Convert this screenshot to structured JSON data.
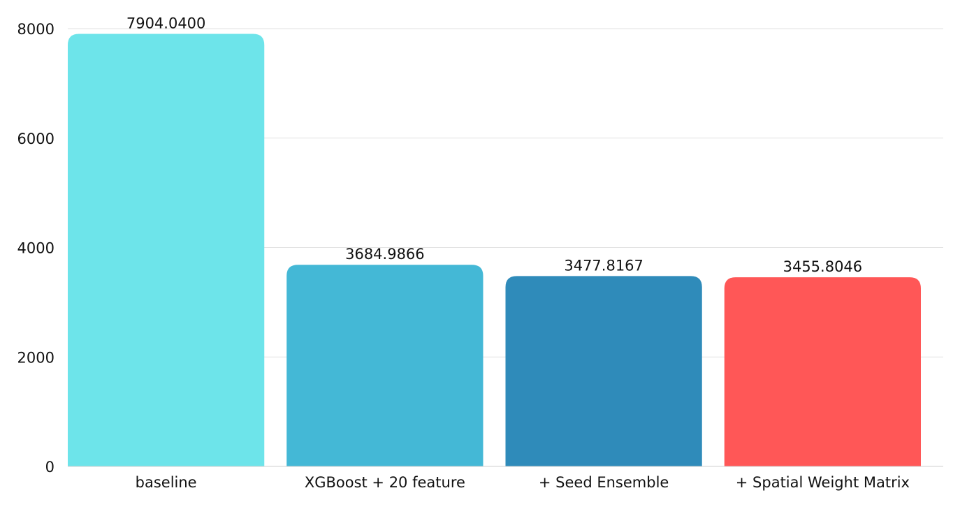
{
  "chart_data": {
    "type": "bar",
    "categories": [
      "baseline",
      "XGBoost + 20 feature",
      "+ Seed Ensemble",
      "+ Spatial Weight Matrix"
    ],
    "values": [
      7904.04,
      3684.9866,
      3477.8167,
      3455.8046
    ],
    "value_labels": [
      "7904.0400",
      "3684.9866",
      "3477.8167",
      "3455.8046"
    ],
    "colors": [
      "#6de4ea",
      "#44b8d6",
      "#2f8bba",
      "#ff5757"
    ],
    "y_ticks": [
      0,
      2000,
      4000,
      6000,
      8000
    ],
    "y_tick_labels": [
      "0",
      "2000",
      "4000",
      "6000",
      "8000"
    ],
    "ylim": [
      0,
      8000
    ],
    "grid": true,
    "legend": "none"
  }
}
